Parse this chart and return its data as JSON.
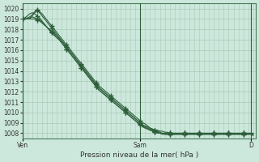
{
  "title": "Pression niveau de la mer( hPa )",
  "bg_color": "#cce8dc",
  "grid_color": "#aac8b8",
  "line_color": "#2d5e3a",
  "ylim": [
    1007.5,
    1020.5
  ],
  "yticks": [
    1008,
    1009,
    1010,
    1011,
    1012,
    1013,
    1014,
    1015,
    1016,
    1017,
    1018,
    1019,
    1020
  ],
  "xtick_labels": [
    "Ven",
    "Sam",
    "D"
  ],
  "xtick_positions": [
    0,
    48,
    93
  ],
  "xlim": [
    0,
    95
  ],
  "series": [
    [
      1019.0,
      1019.0,
      1019.0,
      1019.0,
      1019.0,
      1019.0,
      1018.9,
      1018.8,
      1018.6,
      1018.4,
      1018.2,
      1018.0,
      1017.8,
      1017.6,
      1017.4,
      1017.1,
      1016.9,
      1016.6,
      1016.3,
      1016.0,
      1015.7,
      1015.4,
      1015.1,
      1014.8,
      1014.5,
      1014.2,
      1013.9,
      1013.6,
      1013.3,
      1013.0,
      1012.7,
      1012.4,
      1012.2,
      1012.0,
      1011.8,
      1011.6,
      1011.4,
      1011.2,
      1011.0,
      1010.8,
      1010.6,
      1010.4,
      1010.2,
      1010.0,
      1009.8,
      1009.6,
      1009.4,
      1009.2,
      1009.0,
      1008.8,
      1008.7,
      1008.6,
      1008.5,
      1008.4,
      1008.3,
      1008.3,
      1008.2,
      1008.2,
      1008.1,
      1008.1,
      1008.0,
      1008.0,
      1008.0,
      1008.0,
      1008.0,
      1008.0,
      1008.0,
      1008.0,
      1008.0,
      1008.0,
      1008.0,
      1008.0,
      1008.0,
      1008.0,
      1008.0,
      1008.0,
      1008.0,
      1008.0,
      1008.0,
      1008.0,
      1008.0,
      1008.0,
      1008.0,
      1008.0,
      1008.0,
      1008.0,
      1008.0,
      1008.0,
      1008.0,
      1008.0,
      1008.0,
      1008.0,
      1008.0,
      1008.0,
      1007.9
    ],
    [
      1019.0,
      1019.0,
      1019.0,
      1019.1,
      1019.2,
      1019.1,
      1019.0,
      1018.9,
      1018.7,
      1018.5,
      1018.2,
      1018.0,
      1017.7,
      1017.5,
      1017.2,
      1017.0,
      1016.7,
      1016.4,
      1016.1,
      1015.8,
      1015.5,
      1015.2,
      1014.9,
      1014.6,
      1014.3,
      1014.0,
      1013.7,
      1013.4,
      1013.1,
      1012.8,
      1012.5,
      1012.2,
      1012.0,
      1011.8,
      1011.6,
      1011.4,
      1011.2,
      1011.0,
      1010.8,
      1010.6,
      1010.4,
      1010.2,
      1010.0,
      1009.8,
      1009.6,
      1009.4,
      1009.2,
      1009.0,
      1008.8,
      1008.6,
      1008.5,
      1008.4,
      1008.3,
      1008.2,
      1008.1,
      1008.1,
      1008.0,
      1008.0,
      1008.0,
      1008.0,
      1008.0,
      1008.0,
      1008.0,
      1008.0,
      1008.0,
      1008.0,
      1008.0,
      1008.0,
      1008.0,
      1008.0,
      1008.0,
      1008.0,
      1008.0,
      1008.0,
      1008.0,
      1008.0,
      1008.0,
      1008.0,
      1008.0,
      1008.0,
      1008.0,
      1008.0,
      1008.0,
      1008.0,
      1008.0,
      1008.0,
      1008.0,
      1008.0,
      1008.0,
      1008.0,
      1008.0,
      1008.0,
      1008.0,
      1008.0,
      1008.0
    ],
    [
      1019.0,
      1019.1,
      1019.3,
      1019.5,
      1019.6,
      1019.5,
      1019.3,
      1019.1,
      1018.8,
      1018.5,
      1018.2,
      1017.9,
      1017.7,
      1017.4,
      1017.2,
      1017.0,
      1016.7,
      1016.4,
      1016.1,
      1015.8,
      1015.5,
      1015.2,
      1014.9,
      1014.6,
      1014.3,
      1014.0,
      1013.7,
      1013.4,
      1013.1,
      1012.8,
      1012.5,
      1012.2,
      1012.0,
      1011.8,
      1011.6,
      1011.4,
      1011.2,
      1011.0,
      1010.8,
      1010.6,
      1010.4,
      1010.2,
      1010.0,
      1009.8,
      1009.6,
      1009.4,
      1009.2,
      1009.0,
      1008.9,
      1008.7,
      1008.5,
      1008.4,
      1008.3,
      1008.2,
      1008.1,
      1008.0,
      1008.0,
      1008.0,
      1008.0,
      1008.0,
      1008.0,
      1008.0,
      1008.0,
      1008.0,
      1008.0,
      1008.0,
      1008.0,
      1008.0,
      1008.0,
      1008.0,
      1008.0,
      1008.0,
      1008.0,
      1008.0,
      1008.0,
      1008.0,
      1008.0,
      1008.0,
      1008.0,
      1008.0,
      1008.0,
      1008.0,
      1008.0,
      1008.0,
      1008.0,
      1008.0,
      1008.0,
      1008.0,
      1008.0,
      1008.0,
      1008.0,
      1008.0,
      1008.0,
      1008.0,
      1008.0
    ],
    [
      1019.0,
      1019.0,
      1019.0,
      1019.0,
      1019.3,
      1019.6,
      1019.8,
      1019.6,
      1019.3,
      1019.0,
      1018.7,
      1018.4,
      1018.1,
      1017.8,
      1017.5,
      1017.2,
      1016.9,
      1016.6,
      1016.3,
      1016.0,
      1015.7,
      1015.4,
      1015.1,
      1014.8,
      1014.5,
      1014.2,
      1013.9,
      1013.6,
      1013.3,
      1013.0,
      1012.7,
      1012.4,
      1012.2,
      1012.0,
      1011.8,
      1011.6,
      1011.4,
      1011.2,
      1011.0,
      1010.8,
      1010.6,
      1010.4,
      1010.2,
      1010.0,
      1009.8,
      1009.6,
      1009.4,
      1009.2,
      1009.0,
      1008.8,
      1008.6,
      1008.5,
      1008.4,
      1008.3,
      1008.2,
      1008.1,
      1008.0,
      1007.9,
      1007.9,
      1007.9,
      1007.9,
      1007.9,
      1007.9,
      1007.9,
      1007.9,
      1007.9,
      1007.9,
      1007.9,
      1007.9,
      1007.9,
      1007.9,
      1007.9,
      1007.9,
      1007.9,
      1007.9,
      1007.9,
      1007.9,
      1007.9,
      1007.9,
      1007.9,
      1007.9,
      1007.9,
      1007.9,
      1007.9,
      1007.9,
      1007.9,
      1007.9,
      1007.9,
      1007.9,
      1007.9,
      1007.9,
      1007.9,
      1007.9,
      1007.9,
      1007.8
    ],
    [
      1019.0,
      1019.0,
      1019.1,
      1019.2,
      1019.4,
      1019.7,
      1019.9,
      1019.7,
      1019.5,
      1019.2,
      1018.9,
      1018.6,
      1018.3,
      1018.0,
      1017.7,
      1017.4,
      1017.1,
      1016.8,
      1016.5,
      1016.2,
      1015.9,
      1015.6,
      1015.3,
      1015.0,
      1014.7,
      1014.4,
      1014.1,
      1013.8,
      1013.5,
      1013.2,
      1012.9,
      1012.6,
      1012.4,
      1012.2,
      1012.0,
      1011.8,
      1011.6,
      1011.4,
      1011.2,
      1011.0,
      1010.8,
      1010.6,
      1010.4,
      1010.2,
      1010.0,
      1009.8,
      1009.6,
      1009.4,
      1009.2,
      1009.0,
      1008.9,
      1008.7,
      1008.5,
      1008.4,
      1008.3,
      1008.2,
      1008.1,
      1008.0,
      1007.9,
      1007.9,
      1007.9,
      1007.9,
      1007.9,
      1007.9,
      1007.9,
      1007.9,
      1007.9,
      1007.9,
      1007.9,
      1007.9,
      1007.9,
      1007.9,
      1007.9,
      1007.9,
      1007.9,
      1007.9,
      1007.9,
      1007.9,
      1007.9,
      1007.9,
      1007.9,
      1007.9,
      1007.9,
      1007.9,
      1007.9,
      1007.9,
      1007.9,
      1007.9,
      1007.9,
      1007.9,
      1007.9,
      1007.9,
      1007.9,
      1007.9,
      1007.8
    ]
  ],
  "marker_interval": 6,
  "marker": "+",
  "linewidth": 0.8,
  "markersize": 4,
  "tick_fontsize": 5.5,
  "xlabel_fontsize": 6.5
}
